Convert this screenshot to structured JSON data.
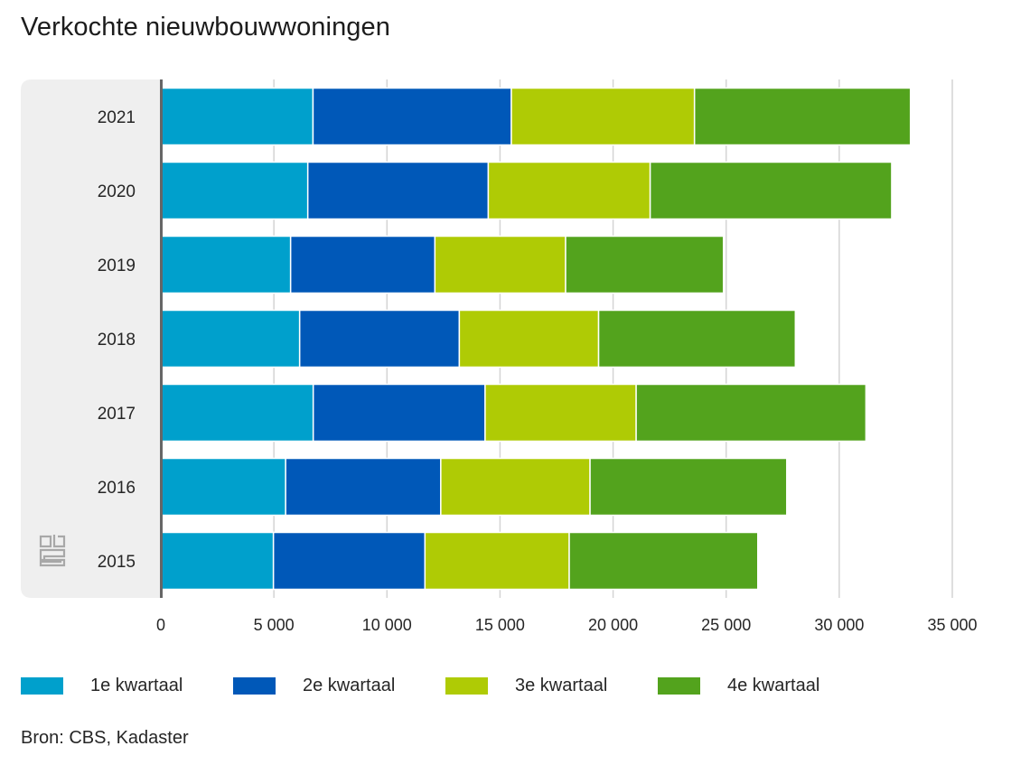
{
  "title": "Verkochte nieuwbouwwoningen",
  "source": "Bron: CBS, Kadaster",
  "logo_icon": "cbs-logo-icon",
  "chart_data": {
    "type": "bar",
    "orientation": "horizontal",
    "stacked": true,
    "title": "Verkochte nieuwbouwwoningen",
    "xlabel": "",
    "ylabel": "",
    "categories": [
      "2021",
      "2020",
      "2019",
      "2018",
      "2017",
      "2016",
      "2015"
    ],
    "xlim": [
      0,
      35000
    ],
    "xticks": [
      0,
      5000,
      10000,
      15000,
      20000,
      25000,
      30000,
      35000
    ],
    "xtick_labels": [
      "0",
      "5 000",
      "10 000",
      "15 000",
      "20 000",
      "25 000",
      "30 000",
      "35 000"
    ],
    "grid": true,
    "legend_position": "bottom",
    "series": [
      {
        "name": "1e kwartaal",
        "color": "#00a0cc",
        "values": [
          6730,
          6500,
          5740,
          6140,
          6740,
          5520,
          4980
        ]
      },
      {
        "name": "2e kwartaal",
        "color": "#0058b8",
        "values": [
          8770,
          7980,
          6380,
          7060,
          7600,
          6860,
          6700
        ]
      },
      {
        "name": "3e kwartaal",
        "color": "#afcb05",
        "values": [
          8100,
          7160,
          5780,
          6160,
          6680,
          6600,
          6380
        ]
      },
      {
        "name": "4e kwartaal",
        "color": "#53a31d",
        "values": [
          9550,
          10680,
          6980,
          8700,
          10160,
          8700,
          8340
        ]
      }
    ]
  }
}
